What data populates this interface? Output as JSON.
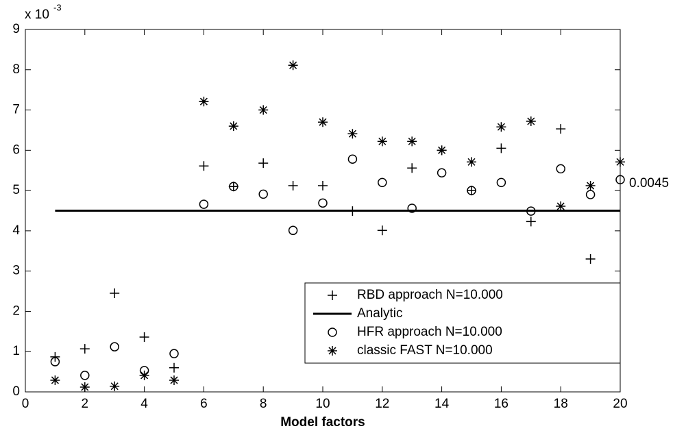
{
  "chart_data": {
    "type": "scatter",
    "axis_multiplier": {
      "base": "x 10",
      "exponent": "-3"
    },
    "x_label": "Model factors",
    "annotation": "0.0045",
    "x": [
      1,
      2,
      3,
      4,
      5,
      6,
      7,
      8,
      9,
      10,
      11,
      12,
      13,
      14,
      15,
      16,
      17,
      18,
      19,
      20
    ],
    "series": [
      {
        "name": "RBD approach N=10.000",
        "marker": "plus",
        "color": "#000000",
        "values": [
          0.87,
          1.07,
          2.45,
          1.36,
          0.6,
          5.61,
          5.1,
          5.68,
          5.12,
          5.12,
          4.49,
          4.01,
          5.56,
          6.0,
          5.0,
          6.05,
          4.23,
          6.53,
          3.3,
          null
        ]
      },
      {
        "name": "Analytic",
        "marker": "line",
        "color": "#000000",
        "values": [
          4.5,
          4.5,
          4.5,
          4.5,
          4.5,
          4.5,
          4.5,
          4.5,
          4.5,
          4.5,
          4.5,
          4.5,
          4.5,
          4.5,
          4.5,
          4.5,
          4.5,
          4.5,
          4.5,
          4.5
        ]
      },
      {
        "name": "HFR approach N=10.000",
        "marker": "circle",
        "color": "#000000",
        "values": [
          0.75,
          0.41,
          1.12,
          0.53,
          0.95,
          4.66,
          5.1,
          4.91,
          4.01,
          4.69,
          5.78,
          5.2,
          4.56,
          5.44,
          5.0,
          5.2,
          4.49,
          5.54,
          4.9,
          5.27
        ]
      },
      {
        "name": "classic FAST N=10.000",
        "marker": "star",
        "color": "#000000",
        "values": [
          0.29,
          0.12,
          0.14,
          0.41,
          0.29,
          7.21,
          6.6,
          7.0,
          8.11,
          6.7,
          6.41,
          6.22,
          6.22,
          6.0,
          5.71,
          6.58,
          6.72,
          4.61,
          5.12,
          5.71
        ]
      }
    ],
    "xlim": [
      0,
      20
    ],
    "xticks": [
      0,
      2,
      4,
      6,
      8,
      10,
      12,
      14,
      16,
      18,
      20
    ],
    "ylim": [
      0,
      9
    ],
    "yticks": [
      0,
      1,
      2,
      3,
      4,
      5,
      6,
      7,
      8,
      9
    ]
  }
}
